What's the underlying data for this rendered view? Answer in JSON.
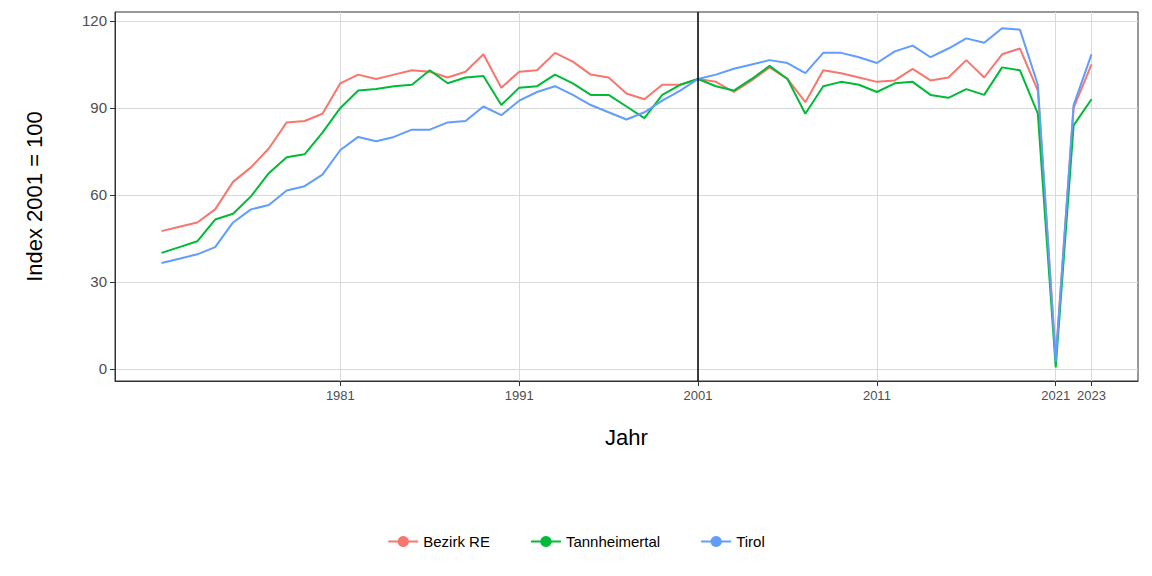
{
  "chart_data": {
    "type": "line",
    "x_label": "Jahr",
    "y_label": "Index 2001 = 100",
    "x": [
      1971,
      1972,
      1973,
      1974,
      1975,
      1976,
      1977,
      1978,
      1979,
      1980,
      1981,
      1982,
      1983,
      1984,
      1985,
      1986,
      1987,
      1988,
      1989,
      1990,
      1991,
      1992,
      1993,
      1994,
      1995,
      1996,
      1997,
      1998,
      1999,
      2000,
      2001,
      2002,
      2003,
      2004,
      2005,
      2006,
      2007,
      2008,
      2009,
      2010,
      2011,
      2012,
      2013,
      2014,
      2015,
      2016,
      2017,
      2018,
      2019,
      2020,
      2021,
      2022,
      2023
    ],
    "series": [
      {
        "name": "Bezirk RE",
        "color": "#F8766D",
        "values": [
          47.5,
          49,
          50.5,
          55,
          64.5,
          69.5,
          76,
          85,
          85.5,
          88,
          98.5,
          101.5,
          100,
          101.5,
          103,
          102.5,
          100.5,
          102.5,
          108.5,
          97,
          102.5,
          103,
          109,
          106,
          101.5,
          100.5,
          95,
          93,
          98,
          98,
          100,
          99,
          95.5,
          99.5,
          104,
          100,
          92,
          103,
          102,
          100.5,
          99,
          99.5,
          103.5,
          99.5,
          100.5,
          106.5,
          100.5,
          108.5,
          110.5,
          96,
          4,
          90,
          105
        ]
      },
      {
        "name": "Tannheimertal",
        "color": "#00BA38",
        "values": [
          40,
          42,
          44,
          51.5,
          53.5,
          59.5,
          67.5,
          73,
          74,
          81.5,
          90,
          96,
          96.5,
          97.5,
          98,
          103,
          98.5,
          100.5,
          101,
          91,
          97,
          97.5,
          101.5,
          98.5,
          94.5,
          94.5,
          90.5,
          86.5,
          94.5,
          98,
          100,
          97.5,
          96,
          100,
          104.5,
          100,
          88,
          97.5,
          99,
          98,
          95.5,
          98.5,
          99,
          94.5,
          93.5,
          96.5,
          94.5,
          104,
          103,
          88,
          0.5,
          84,
          93
        ]
      },
      {
        "name": "Tirol",
        "color": "#619CFF",
        "values": [
          36.5,
          38,
          39.5,
          42,
          50.5,
          55,
          56.5,
          61.5,
          63,
          67,
          75.5,
          80,
          78.5,
          80,
          82.5,
          82.5,
          85,
          85.5,
          90.5,
          87.5,
          92.5,
          95.5,
          97.5,
          94.5,
          91,
          88.5,
          86,
          88.5,
          92.5,
          96,
          100,
          101.5,
          103.5,
          105,
          106.5,
          105.5,
          102,
          109,
          109,
          107.5,
          105.5,
          109.5,
          111.5,
          107.5,
          110.5,
          114,
          112.5,
          117.5,
          117,
          98,
          2.5,
          91,
          108.5
        ]
      }
    ],
    "xlim": [
      1968.4,
      2025.6
    ],
    "xticks": [
      1981,
      1991,
      2001,
      2011,
      2021,
      2023
    ],
    "ylim": [
      -4.2,
      123.1
    ],
    "yticks": [
      0,
      30,
      60,
      90,
      120
    ],
    "vlines": [
      2001
    ],
    "grid": true,
    "legend": "bottom"
  }
}
